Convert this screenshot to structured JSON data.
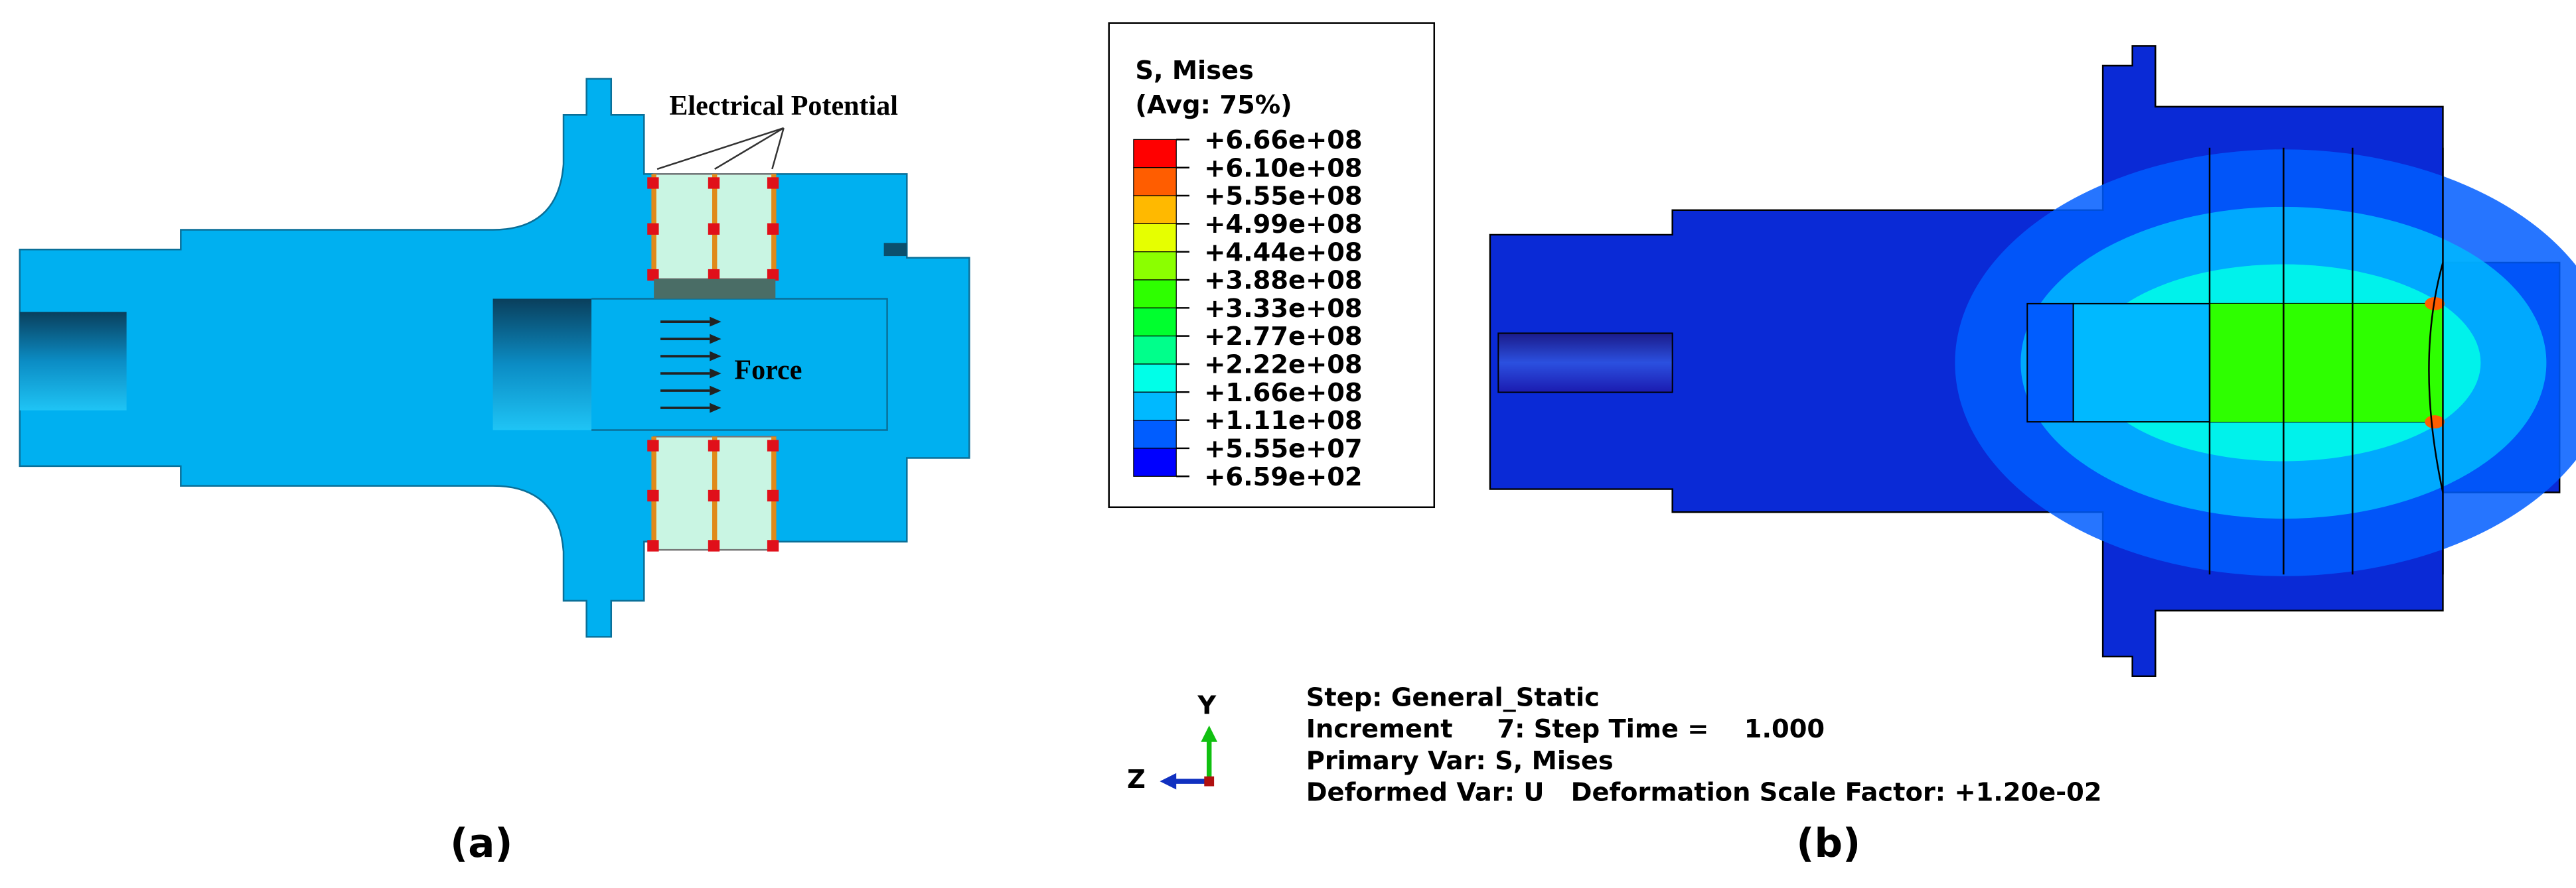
{
  "panel_a": {
    "label": "(a)",
    "annotations": {
      "electrical_potential": "Electrical Potential",
      "force": "Force"
    }
  },
  "panel_b": {
    "label": "(b)",
    "legend": {
      "title": "S, Mises",
      "subtitle": "(Avg: 75%)",
      "values": [
        "+6.66e+08",
        "+6.10e+08",
        "+5.55e+08",
        "+4.99e+08",
        "+4.44e+08",
        "+3.88e+08",
        "+3.33e+08",
        "+2.77e+08",
        "+2.22e+08",
        "+1.66e+08",
        "+1.11e+08",
        "+5.55e+07",
        "+6.59e+02"
      ],
      "colors": [
        "#ff0000",
        "#ff5d00",
        "#ffb900",
        "#e6ff00",
        "#8bff00",
        "#2eff00",
        "#00ff2e",
        "#00ff8b",
        "#00ffe8",
        "#00b9ff",
        "#005dff",
        "#0000ff"
      ]
    },
    "triad": {
      "y": "Y",
      "z": "Z"
    },
    "step_info": [
      "Step: General_Static",
      "Increment     7: Step Time =    1.000",
      "Primary Var: S, Mises",
      "Deformed Var: U   Deformation Scale Factor: +1.20e-02"
    ]
  }
}
